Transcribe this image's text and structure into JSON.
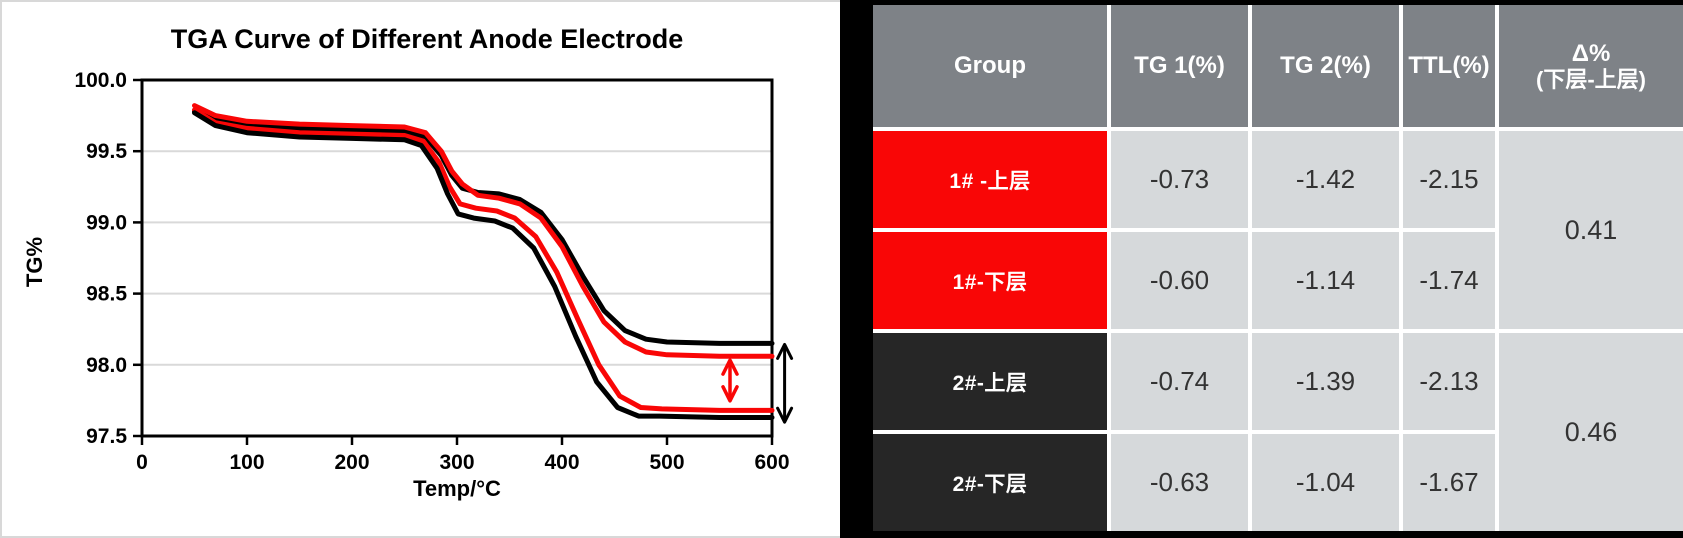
{
  "colors": {
    "header_bg": "#7E8287",
    "cell_bg": "#D6D9DB",
    "value_text": "#333333",
    "red": "#F90606",
    "dark": "#262626",
    "grid": "#D9D9D9",
    "panel_left_bg": "#FFFFFF",
    "panel_right_bg": "#000000"
  },
  "chart_data": {
    "type": "line",
    "title": "TGA Curve of Different Anode Electrode",
    "xlabel": "Temp/°C",
    "ylabel": "TG%",
    "xlim": [
      0,
      600
    ],
    "ylim": [
      97.5,
      100.0
    ],
    "xticks": [
      0,
      100,
      200,
      300,
      400,
      500,
      600
    ],
    "yticks": [
      97.5,
      98.0,
      98.5,
      99.0,
      99.5,
      100.0
    ],
    "grid": true,
    "legend": "none",
    "series": [
      {
        "name": "2#-下层",
        "color": "#000000",
        "points": [
          [
            50,
            99.78
          ],
          [
            70,
            99.72
          ],
          [
            100,
            99.68
          ],
          [
            150,
            99.66
          ],
          [
            200,
            99.65
          ],
          [
            250,
            99.64
          ],
          [
            270,
            99.6
          ],
          [
            285,
            99.47
          ],
          [
            295,
            99.33
          ],
          [
            305,
            99.24
          ],
          [
            320,
            99.21
          ],
          [
            340,
            99.2
          ],
          [
            360,
            99.16
          ],
          [
            380,
            99.07
          ],
          [
            400,
            98.88
          ],
          [
            420,
            98.62
          ],
          [
            440,
            98.38
          ],
          [
            460,
            98.24
          ],
          [
            480,
            98.18
          ],
          [
            500,
            98.16
          ],
          [
            550,
            98.15
          ],
          [
            600,
            98.15
          ]
        ]
      },
      {
        "name": "1#-下层",
        "color": "#F90606",
        "points": [
          [
            50,
            99.82
          ],
          [
            70,
            99.75
          ],
          [
            100,
            99.71
          ],
          [
            150,
            99.69
          ],
          [
            200,
            99.68
          ],
          [
            250,
            99.67
          ],
          [
            270,
            99.63
          ],
          [
            285,
            99.5
          ],
          [
            295,
            99.36
          ],
          [
            305,
            99.27
          ],
          [
            320,
            99.19
          ],
          [
            340,
            99.17
          ],
          [
            360,
            99.13
          ],
          [
            380,
            99.03
          ],
          [
            400,
            98.83
          ],
          [
            420,
            98.55
          ],
          [
            440,
            98.3
          ],
          [
            460,
            98.16
          ],
          [
            480,
            98.09
          ],
          [
            500,
            98.07
          ],
          [
            550,
            98.06
          ],
          [
            600,
            98.06
          ]
        ]
      },
      {
        "name": "1#-上层",
        "color": "#F90606",
        "points": [
          [
            50,
            99.79
          ],
          [
            70,
            99.7
          ],
          [
            100,
            99.66
          ],
          [
            150,
            99.63
          ],
          [
            200,
            99.62
          ],
          [
            250,
            99.61
          ],
          [
            268,
            99.57
          ],
          [
            283,
            99.42
          ],
          [
            293,
            99.25
          ],
          [
            303,
            99.13
          ],
          [
            318,
            99.1
          ],
          [
            338,
            99.08
          ],
          [
            355,
            99.03
          ],
          [
            375,
            98.9
          ],
          [
            395,
            98.65
          ],
          [
            415,
            98.32
          ],
          [
            435,
            98.0
          ],
          [
            455,
            97.78
          ],
          [
            475,
            97.7
          ],
          [
            495,
            97.69
          ],
          [
            550,
            97.68
          ],
          [
            600,
            97.68
          ]
        ]
      },
      {
        "name": "2#-上层",
        "color": "#000000",
        "points": [
          [
            50,
            99.77
          ],
          [
            70,
            99.68
          ],
          [
            100,
            99.63
          ],
          [
            150,
            99.6
          ],
          [
            200,
            99.59
          ],
          [
            250,
            99.58
          ],
          [
            266,
            99.54
          ],
          [
            281,
            99.38
          ],
          [
            291,
            99.2
          ],
          [
            301,
            99.06
          ],
          [
            316,
            99.03
          ],
          [
            336,
            99.01
          ],
          [
            353,
            98.96
          ],
          [
            373,
            98.82
          ],
          [
            393,
            98.55
          ],
          [
            413,
            98.2
          ],
          [
            433,
            97.88
          ],
          [
            453,
            97.7
          ],
          [
            473,
            97.64
          ],
          [
            493,
            97.64
          ],
          [
            550,
            97.63
          ],
          [
            600,
            97.63
          ]
        ]
      }
    ],
    "annotations": {
      "arrows": [
        {
          "name": "red-delta-arrow",
          "color": "#F90606",
          "x": 560,
          "y_from": 98.04,
          "y_to": 97.74,
          "width": 3.5
        },
        {
          "name": "black-delta-arrow",
          "color": "#000000",
          "x": 612,
          "y_from": 98.15,
          "y_to": 97.59,
          "width": 3
        }
      ]
    }
  },
  "table": {
    "headers": [
      {
        "label": "Group"
      },
      {
        "label": "TG 1(%)"
      },
      {
        "label": "TG 2(%)"
      },
      {
        "label": "TTL(%)"
      },
      {
        "label": "Δ%",
        "sub": "(下层-上层)"
      }
    ],
    "rows": [
      {
        "group": "1# -上层",
        "group_bg": "#F90606",
        "tg1": "-0.73",
        "tg2": "-1.42",
        "ttl": "-2.15"
      },
      {
        "group": "1#-下层",
        "group_bg": "#F90606",
        "tg1": "-0.60",
        "tg2": "-1.14",
        "ttl": "-1.74"
      },
      {
        "group": "2#-上层",
        "group_bg": "#262626",
        "tg1": "-0.74",
        "tg2": "-1.39",
        "ttl": "-2.13"
      },
      {
        "group": "2#-下层",
        "group_bg": "#262626",
        "tg1": "-0.63",
        "tg2": "-1.04",
        "ttl": "-1.67"
      }
    ],
    "deltas": [
      {
        "value": "0.41",
        "spans": "rows 1-2"
      },
      {
        "value": "0.46",
        "spans": "rows 3-4"
      }
    ]
  }
}
